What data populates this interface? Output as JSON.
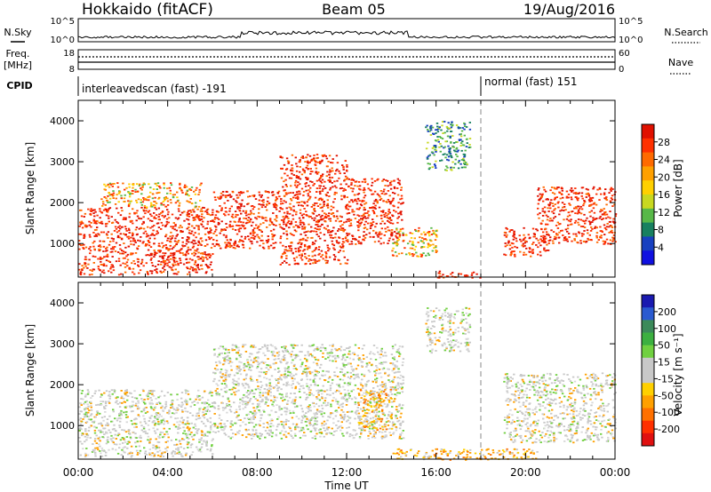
{
  "header": {
    "station": "Hokkaido (fitACF)",
    "beam": "Beam 05",
    "date": "19/Aug/2016"
  },
  "summary_strip": {
    "nsky_label": "N.Sky",
    "nsky_ticks": [
      "10^5",
      "10^0"
    ],
    "nsearch_label": "N.Search",
    "nsearch_ticks": [
      "10^5",
      "10^0"
    ],
    "freq_label_1": "Freq.",
    "freq_label_2": "[MHz]",
    "freq_ticks": [
      "18",
      "8"
    ],
    "nave_label": "Nave",
    "nave_ticks": [
      "60",
      "0"
    ],
    "cpid_label": "CPID",
    "cpid_mode_1": "interleavedscan (fast) -191",
    "cpid_mode_2": "normal (fast) 151"
  },
  "chart_data": [
    {
      "type": "heatmap",
      "name": "power",
      "ylabel": "Slant Range [km]",
      "xlabel": "Time UT",
      "ylim": [
        180,
        4500
      ],
      "yticks": [
        "4000",
        "3000",
        "2000",
        "1000"
      ],
      "xticks": [
        "00:00",
        "04:00",
        "08:00",
        "12:00",
        "16:00",
        "20:00",
        "00:00"
      ],
      "colorbar": {
        "label": "Power [dB]",
        "ticks": [
          "28",
          "24",
          "20",
          "16",
          "12",
          "8",
          "4"
        ],
        "colors": [
          "#e01000",
          "#ff3000",
          "#ff6a00",
          "#ffa000",
          "#ffd000",
          "#c8d820",
          "#58b848",
          "#188060",
          "#1840c0",
          "#1010e0"
        ]
      },
      "marker_time": "18:00",
      "echo_regions": [
        {
          "t_start": 0.0,
          "t_end": 6.0,
          "r_min": 250,
          "r_max": 1900,
          "level": "high"
        },
        {
          "t_start": 1.0,
          "t_end": 5.5,
          "r_min": 1900,
          "r_max": 2500,
          "level": "medium"
        },
        {
          "t_start": 6.0,
          "t_end": 9.0,
          "r_min": 900,
          "r_max": 2300,
          "level": "high"
        },
        {
          "t_start": 9.0,
          "t_end": 12.0,
          "r_min": 500,
          "r_max": 3200,
          "level": "high"
        },
        {
          "t_start": 12.0,
          "t_end": 14.5,
          "r_min": 1000,
          "r_max": 2600,
          "level": "high"
        },
        {
          "t_start": 14.0,
          "t_end": 16.0,
          "r_min": 700,
          "r_max": 1400,
          "level": "medium"
        },
        {
          "t_start": 15.5,
          "t_end": 17.5,
          "r_min": 2800,
          "r_max": 4000,
          "level": "low"
        },
        {
          "t_start": 16.0,
          "t_end": 18.0,
          "r_min": 180,
          "r_max": 350,
          "level": "high"
        },
        {
          "t_start": 19.0,
          "t_end": 21.0,
          "r_min": 700,
          "r_max": 1400,
          "level": "high"
        },
        {
          "t_start": 20.5,
          "t_end": 24.0,
          "r_min": 1000,
          "r_max": 2400,
          "level": "high"
        }
      ]
    },
    {
      "type": "heatmap",
      "name": "velocity",
      "ylabel": "Slant Range [km]",
      "xlabel": "Time UT",
      "ylim": [
        180,
        4500
      ],
      "yticks": [
        "4000",
        "3000",
        "2000",
        "1000"
      ],
      "xticks": [
        "00:00",
        "04:00",
        "08:00",
        "12:00",
        "16:00",
        "20:00",
        "00:00"
      ],
      "colorbar": {
        "label": "Velocity [m s⁻¹]",
        "ticks": [
          "200",
          "100",
          "50",
          "15",
          "-15",
          "-50",
          "-100",
          "-200"
        ],
        "colors": [
          "#1a1ab0",
          "#2a5ad0",
          "#3c8a5a",
          "#3cb040",
          "#70d040",
          "#c8c8c8",
          "#c8c8c8",
          "#ffd000",
          "#ffa000",
          "#ff7000",
          "#ff3000",
          "#e01010"
        ]
      },
      "marker_time": "18:00",
      "echo_regions": [
        {
          "t_start": 0.0,
          "t_end": 6.0,
          "r_min": 250,
          "r_max": 1900,
          "level": "slow"
        },
        {
          "t_start": 6.0,
          "t_end": 14.5,
          "r_min": 700,
          "r_max": 3000,
          "level": "slow"
        },
        {
          "t_start": 12.5,
          "t_end": 14.0,
          "r_min": 900,
          "r_max": 1900,
          "level": "negative"
        },
        {
          "t_start": 14.0,
          "t_end": 20.5,
          "r_min": 180,
          "r_max": 450,
          "level": "negative"
        },
        {
          "t_start": 15.5,
          "t_end": 17.5,
          "r_min": 2800,
          "r_max": 3900,
          "level": "slow"
        },
        {
          "t_start": 19.0,
          "t_end": 24.0,
          "r_min": 600,
          "r_max": 2300,
          "level": "slow"
        }
      ]
    }
  ]
}
